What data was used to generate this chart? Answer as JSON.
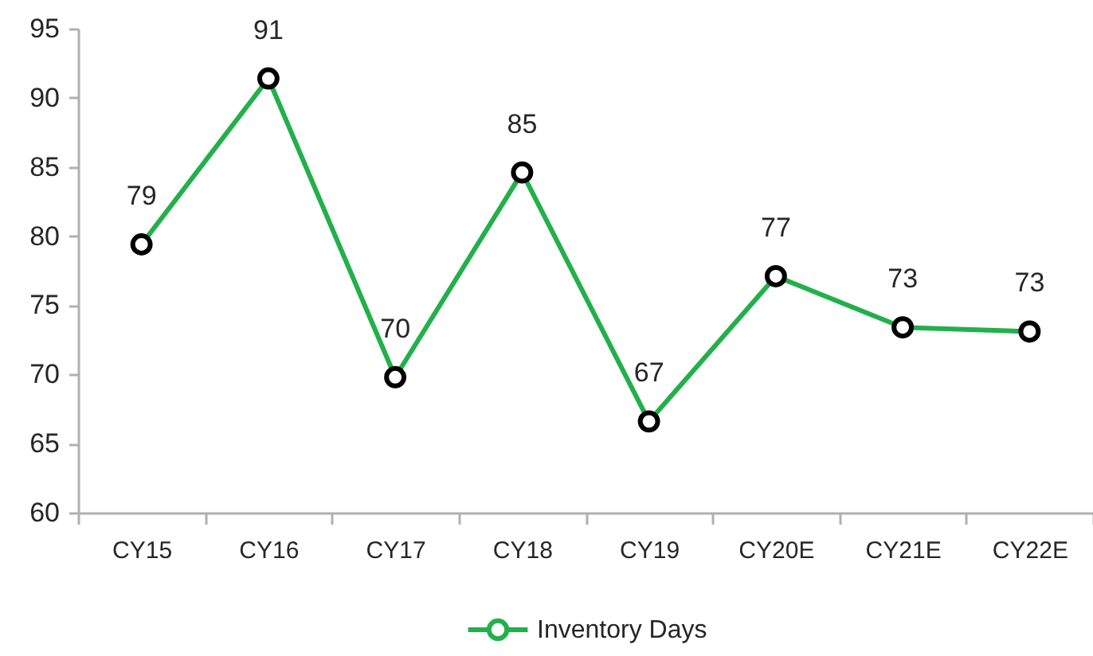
{
  "chart_data": {
    "type": "line",
    "categories": [
      "CY15",
      "CY16",
      "CY17",
      "CY18",
      "CY19",
      "CY20E",
      "CY21E",
      "CY22E"
    ],
    "series": [
      {
        "name": "Inventory Days",
        "color": "#22b04b",
        "values": [
          79.4,
          91.4,
          69.8,
          84.6,
          66.6,
          77.1,
          73.4,
          73.1
        ],
        "value_labels": [
          "79",
          "91",
          "70",
          "85",
          "67",
          "77",
          "73",
          "73"
        ]
      }
    ],
    "ylim": [
      60,
      95
    ],
    "yticks": [
      60,
      65,
      70,
      75,
      80,
      85,
      90,
      95
    ],
    "legend": "bottom",
    "marker": "circle",
    "line_style": "solid"
  }
}
